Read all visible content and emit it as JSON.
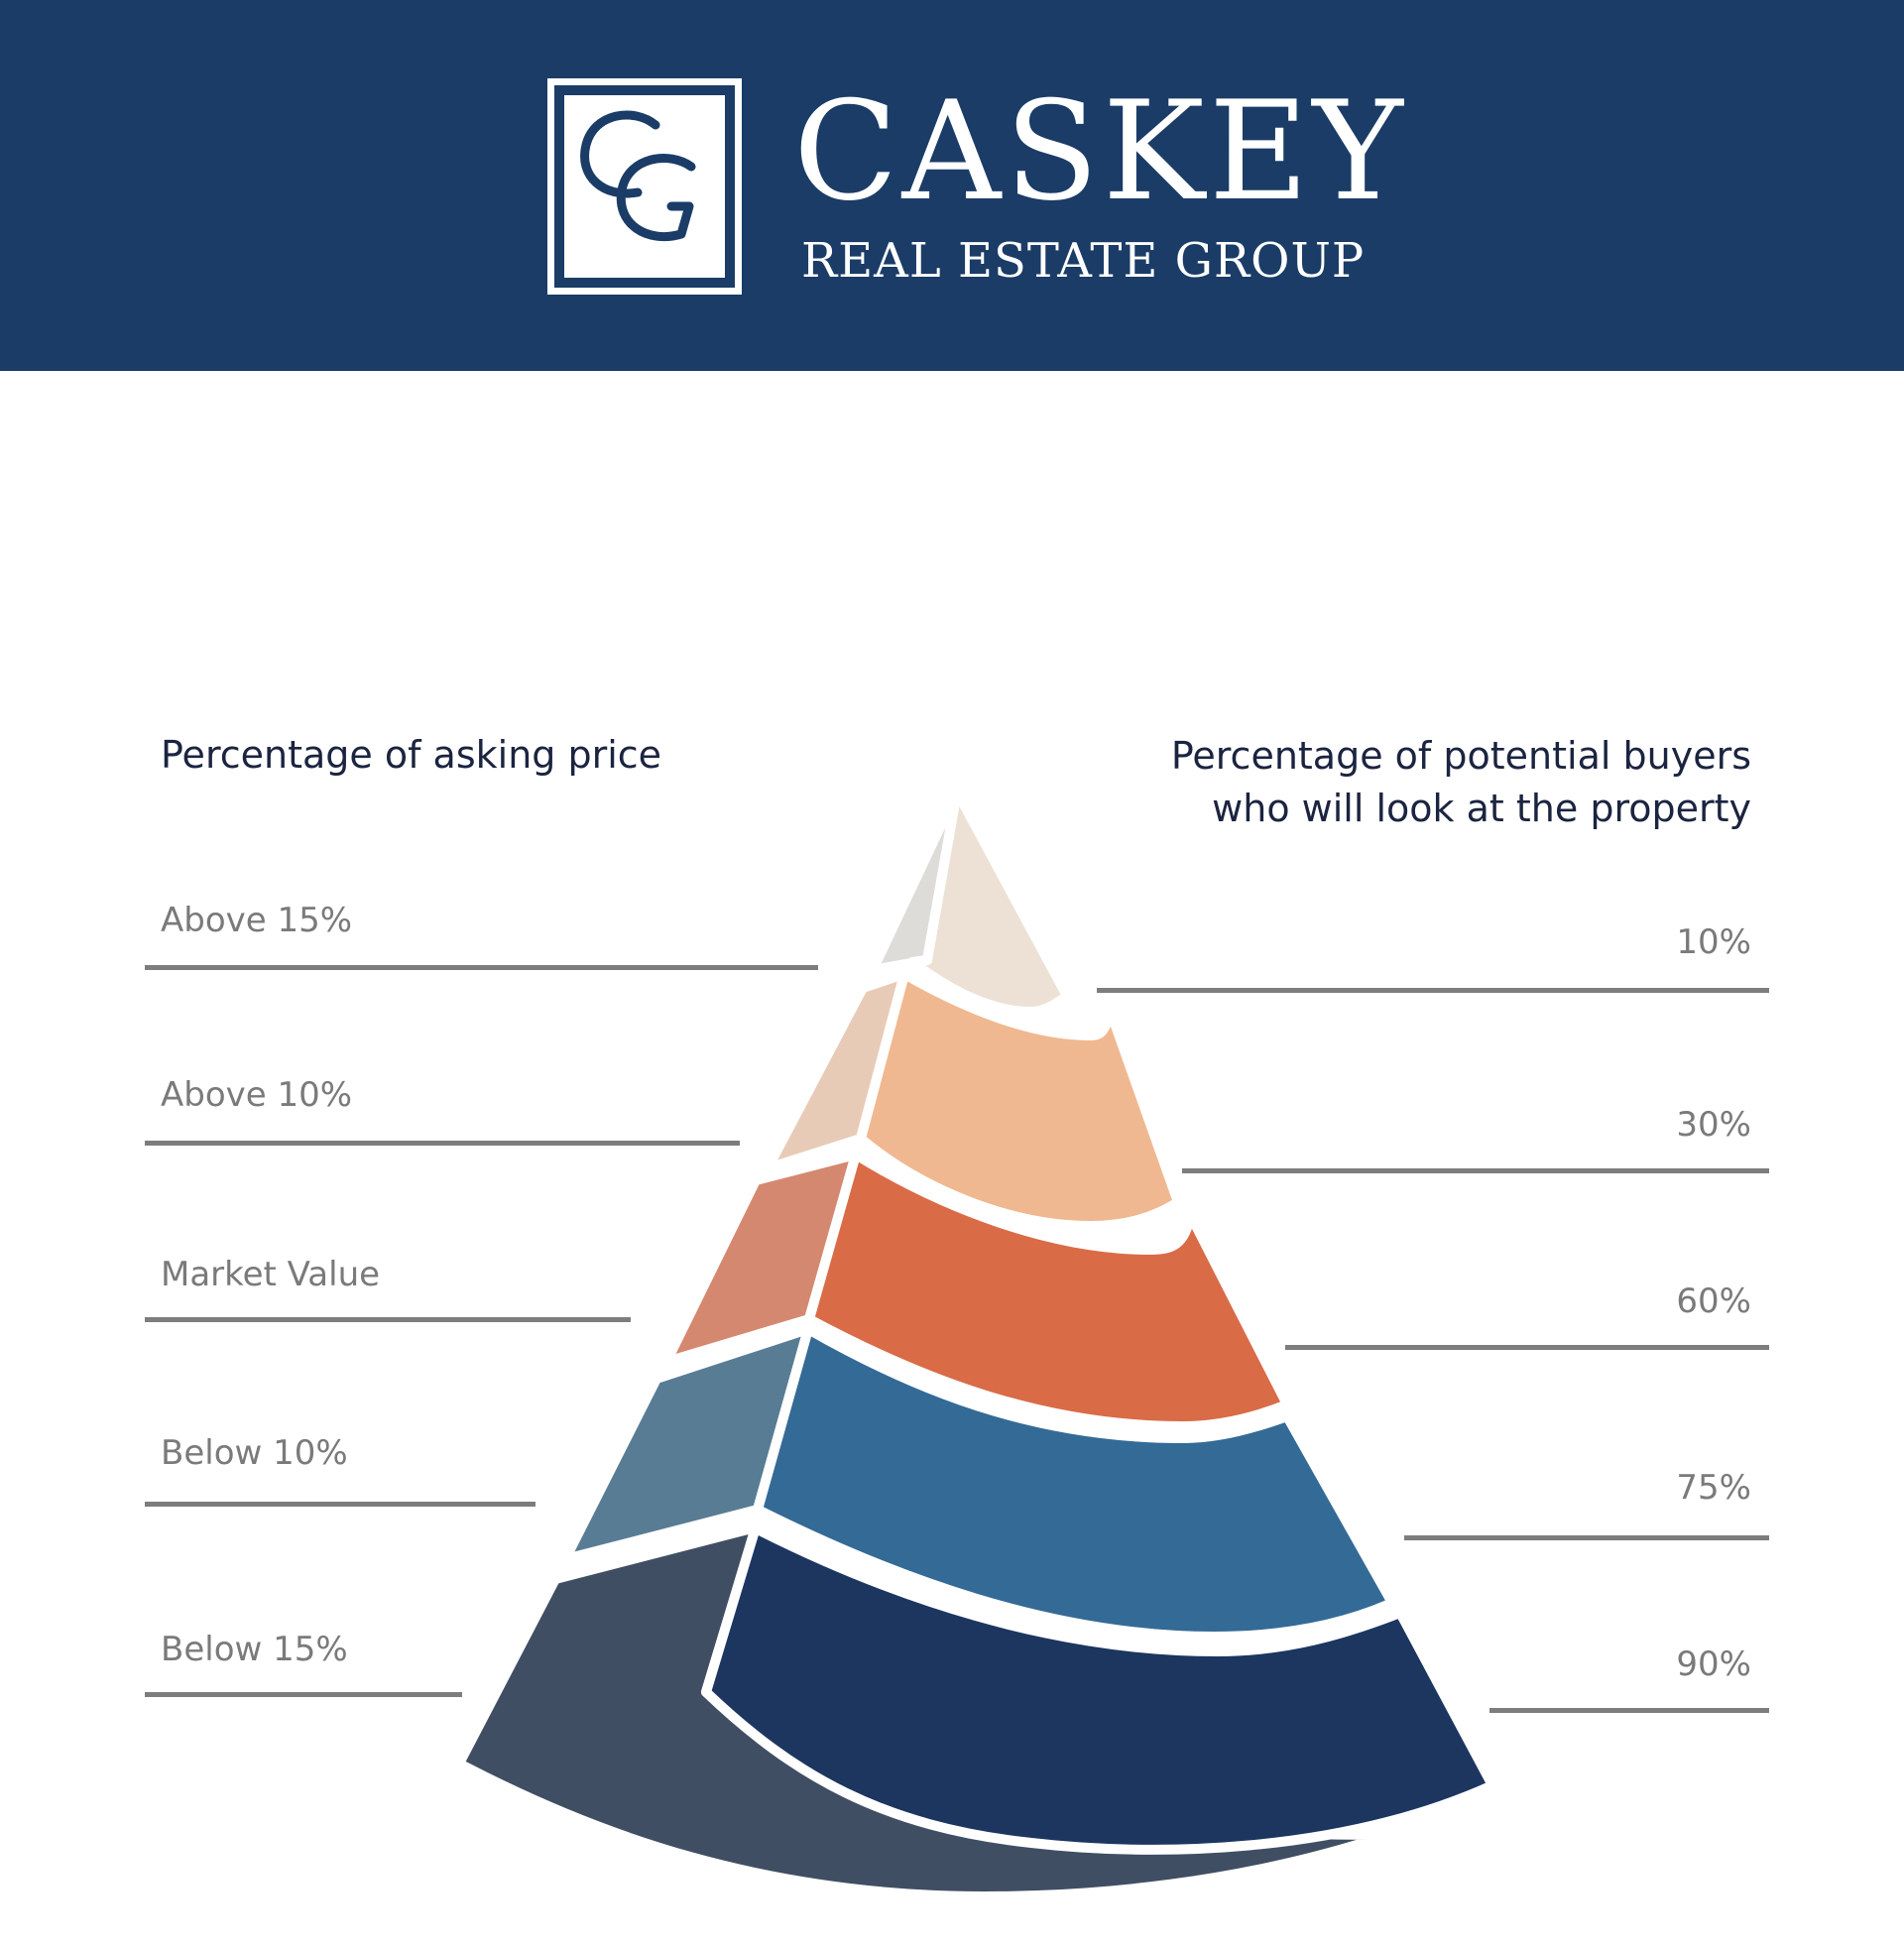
{
  "colors": {
    "brand": "#1a3c67",
    "heading": "#1b2440",
    "label": "#7a7a7a",
    "rule": "#7d7d7d",
    "tiers": [
      {
        "front": "#ede1d6",
        "side": "#dedcd9"
      },
      {
        "front": "#f0b890",
        "side": "#e8cbb7"
      },
      {
        "front": "#d96b47",
        "side": "#d58870"
      },
      {
        "front": "#346a96",
        "side": "#597c95"
      },
      {
        "front": "#1c3660",
        "side": "#404e63"
      }
    ]
  },
  "brand": {
    "monogram": "CG",
    "name": "CASKEY",
    "subtitle": "REAL ESTATE GROUP"
  },
  "headers": {
    "left": "Percentage of asking price",
    "right_line1": "Percentage of potential buyers",
    "right_line2": "who will look at the property"
  },
  "tiers": [
    {
      "price": "Above 15%",
      "buyers": "10%"
    },
    {
      "price": "Above 10%",
      "buyers": "30%"
    },
    {
      "price": "Market Value",
      "buyers": "60%"
    },
    {
      "price": "Below 10%",
      "buyers": "75%"
    },
    {
      "price": "Below 15%",
      "buyers": "90%"
    }
  ]
}
